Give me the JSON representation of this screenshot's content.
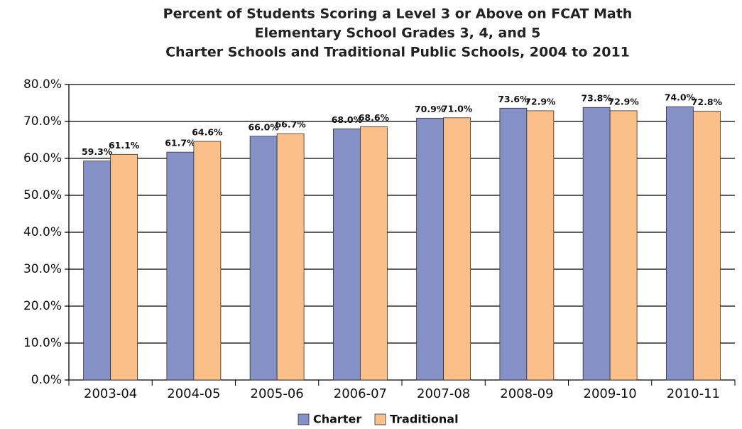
{
  "chart_data": {
    "type": "bar",
    "title": [
      "Percent of Students Scoring a Level 3 or Above on FCAT Math",
      "Elementary School Grades 3, 4, and 5",
      "Charter Schools and Traditional Public Schools, 2004 to 2011"
    ],
    "categories": [
      "2003-04",
      "2004-05",
      "2005-06",
      "2006-07",
      "2007-08",
      "2008-09",
      "2009-10",
      "2010-11"
    ],
    "series": [
      {
        "name": "Charter",
        "color": "#8490c6",
        "values": [
          59.3,
          61.7,
          66.0,
          68.0,
          70.9,
          73.6,
          73.8,
          74.0
        ],
        "value_labels": [
          "59.3%",
          "61.7%",
          "66.0%",
          "68.0%",
          "70.9%",
          "73.6%",
          "73.8%",
          "74.0%"
        ]
      },
      {
        "name": "Traditional",
        "color": "#fbc08a",
        "values": [
          61.1,
          64.6,
          66.7,
          68.6,
          71.0,
          72.9,
          72.9,
          72.8
        ],
        "value_labels": [
          "61.1%",
          "64.6%",
          "66.7%",
          "68.6%",
          "71.0%",
          "72.9%",
          "72.9%",
          "72.8%"
        ]
      }
    ],
    "ylim": [
      0,
      80
    ],
    "yticks": [
      {
        "value": 0,
        "label": "0.0%"
      },
      {
        "value": 10,
        "label": "10.0%"
      },
      {
        "value": 20,
        "label": "20.0%"
      },
      {
        "value": 30,
        "label": "30.0%"
      },
      {
        "value": 40,
        "label": "40.0%"
      },
      {
        "value": 50,
        "label": "50.0%"
      },
      {
        "value": 60,
        "label": "60.0%"
      },
      {
        "value": 70,
        "label": "70.0%"
      },
      {
        "value": 80,
        "label": "80.0%"
      }
    ],
    "grid": true,
    "legend": "bottom"
  }
}
